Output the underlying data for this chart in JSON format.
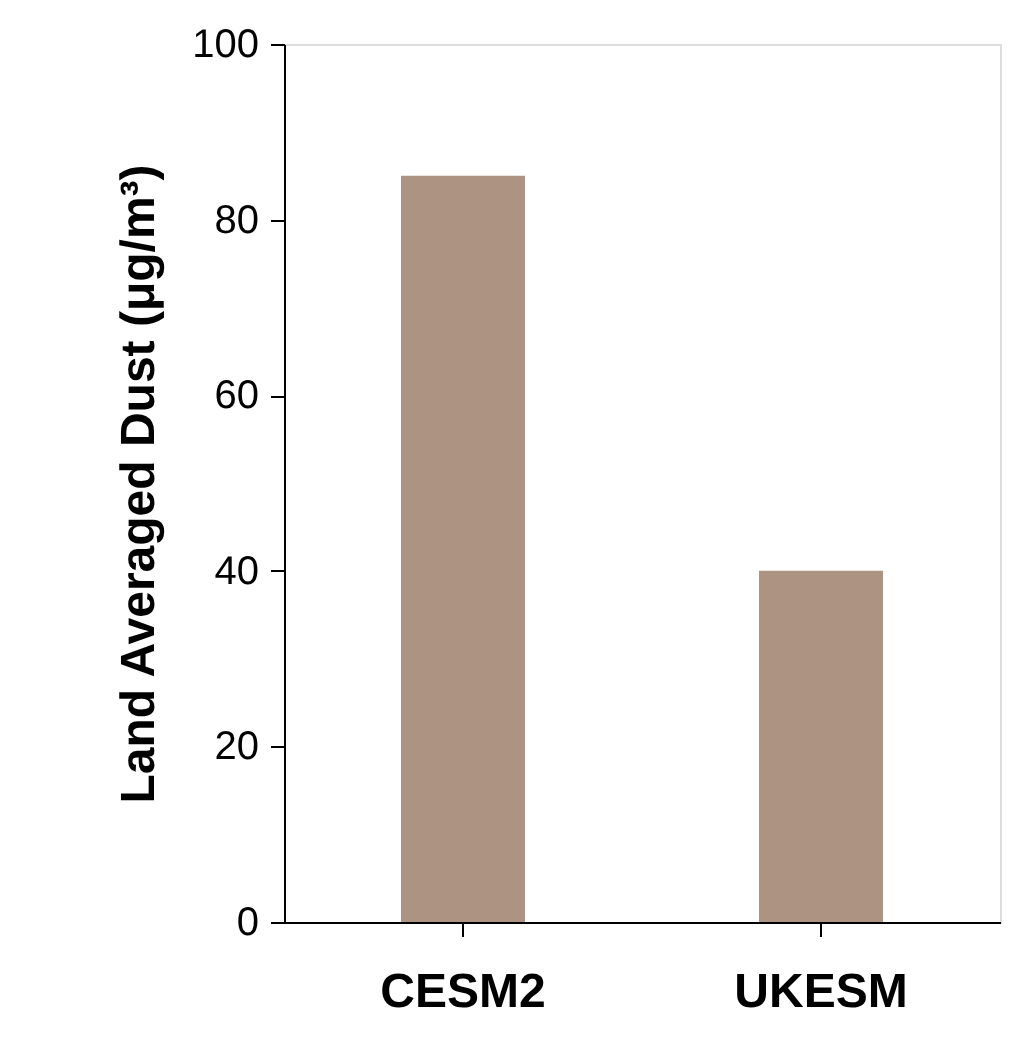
{
  "chart_data": {
    "type": "bar",
    "ylabel": "Land Averaged Dust (μg/m³)",
    "categories": [
      "CESM2",
      "UKESM"
    ],
    "values": [
      85,
      40
    ],
    "color": "#ad9382",
    "ylim": [
      0,
      100
    ],
    "yticks": [
      0,
      20,
      40,
      60,
      80,
      100
    ],
    "grid": false
  }
}
